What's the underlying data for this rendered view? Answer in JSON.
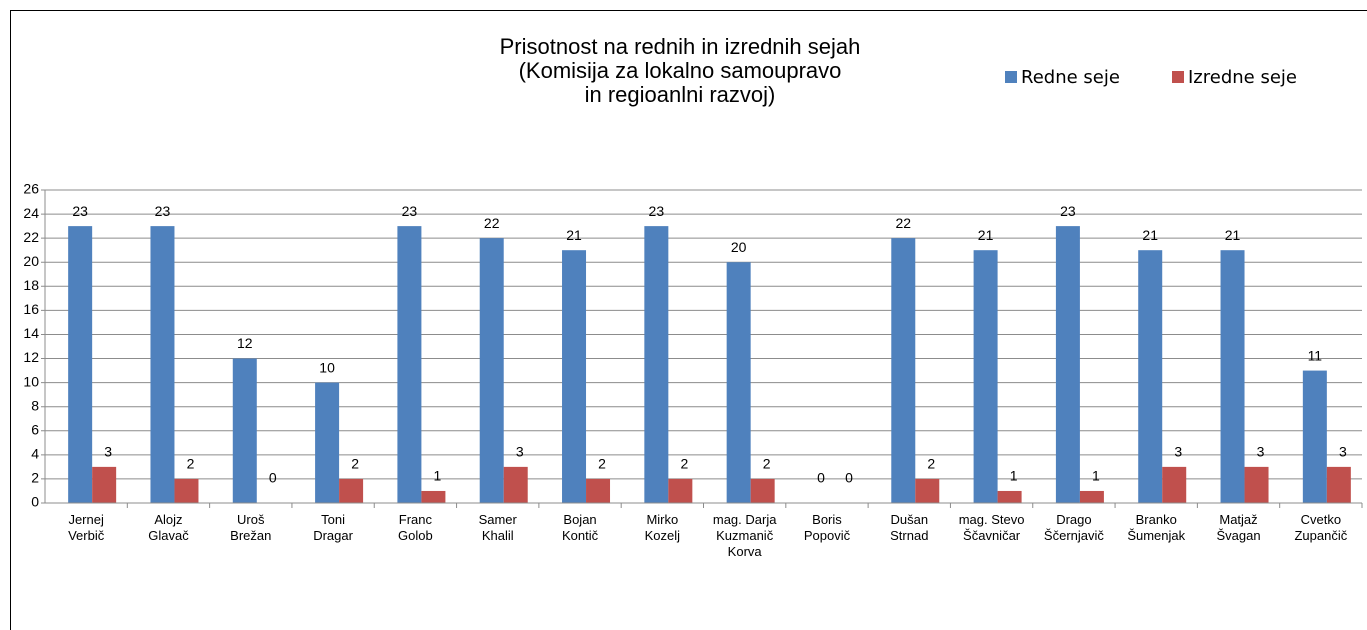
{
  "chart_data": {
    "type": "bar",
    "title": "Prisotnost na rednih in izrednih sejah\n(Komisija za lokalno samoupravo\nin regioanlni razvoj)",
    "categories": [
      "Jernej\nVerbič",
      "Alojz\nGlavač",
      "Uroš\nBrežan",
      "Toni\nDragar",
      "Franc\nGolob",
      "Samer\nKhalil",
      "Bojan\nKontič",
      "Mirko\nKozelj",
      "mag. Darja\nKuzmanič\nKorva",
      "Boris\nPopovič",
      "Dušan\nStrnad",
      "mag. Stevo\nŠčavničar",
      "Drago\nŠčernjavič",
      "Branko\nŠumenjak",
      "Matjaž\nŠvagan",
      "Cvetko\nZupančič"
    ],
    "series": [
      {
        "name": "Redne seje",
        "color": "#4f81bd",
        "values": [
          23,
          23,
          12,
          10,
          23,
          22,
          21,
          23,
          20,
          0,
          22,
          21,
          23,
          21,
          21,
          11
        ]
      },
      {
        "name": "Izredne seje",
        "color": "#c0504d",
        "values": [
          3,
          2,
          0,
          2,
          1,
          3,
          2,
          2,
          2,
          0,
          2,
          1,
          1,
          3,
          3,
          3
        ]
      }
    ],
    "ylim": [
      0,
      26
    ],
    "yticks": [
      0,
      2,
      4,
      6,
      8,
      10,
      12,
      14,
      16,
      18,
      20,
      22,
      24,
      26
    ],
    "grid": true,
    "legend": "top-right"
  }
}
